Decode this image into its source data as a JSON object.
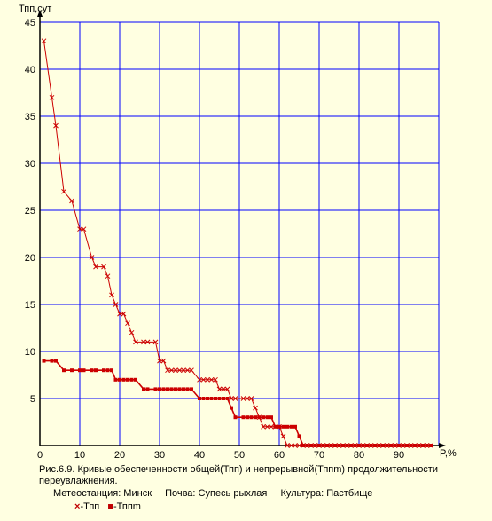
{
  "chart_data": {
    "type": "line",
    "ylabel": "Тпп,сут",
    "xlabel": "P,%",
    "xlim": [
      0,
      100
    ],
    "ylim": [
      0,
      45
    ],
    "xticks": [
      10,
      20,
      30,
      40,
      50,
      60,
      70,
      80,
      90
    ],
    "yticks": [
      5,
      10,
      15,
      20,
      25,
      30,
      35,
      40,
      45
    ],
    "grid": true,
    "series": [
      {
        "name": "Тпп",
        "marker": "x",
        "color": "#cc0000",
        "x": [
          1,
          3,
          4,
          6,
          8,
          10,
          11,
          13,
          14,
          16,
          17,
          18,
          19,
          20,
          21,
          22,
          23,
          24,
          26,
          27,
          29,
          30,
          31,
          32,
          33,
          34,
          35,
          36,
          37,
          38,
          40,
          41,
          42,
          43,
          44,
          45,
          46,
          47,
          48,
          49,
          51,
          52,
          53,
          54,
          55,
          56,
          57,
          58,
          59,
          60,
          61,
          62,
          63,
          64,
          65,
          66,
          67,
          68,
          69,
          70,
          71,
          72,
          73,
          74,
          75,
          76,
          77,
          78,
          79,
          80,
          81,
          82,
          83,
          84,
          85,
          86,
          87,
          88,
          89,
          90,
          91,
          92,
          93,
          94,
          95,
          96,
          97,
          98
        ],
        "values": [
          43,
          37,
          34,
          27,
          26,
          23,
          23,
          20,
          19,
          19,
          18,
          16,
          15,
          14,
          14,
          13,
          12,
          11,
          11,
          11,
          11,
          9,
          9,
          8,
          8,
          8,
          8,
          8,
          8,
          8,
          7,
          7,
          7,
          7,
          7,
          6,
          6,
          6,
          5,
          5,
          5,
          5,
          5,
          4,
          3,
          2,
          2,
          2,
          2,
          2,
          1,
          0,
          0,
          0,
          0,
          0,
          0,
          0,
          0,
          0,
          0,
          0,
          0,
          0,
          0,
          0,
          0,
          0,
          0,
          0,
          0,
          0,
          0,
          0,
          0,
          0,
          0,
          0,
          0,
          0,
          0,
          0,
          0,
          0,
          0,
          0,
          0,
          0
        ]
      },
      {
        "name": "Тппm",
        "marker": "square",
        "color": "#cc0000",
        "x": [
          1,
          3,
          4,
          6,
          8,
          10,
          11,
          13,
          14,
          16,
          17,
          18,
          19,
          20,
          21,
          22,
          23,
          24,
          26,
          27,
          29,
          30,
          31,
          32,
          33,
          34,
          35,
          36,
          37,
          38,
          40,
          41,
          42,
          43,
          44,
          45,
          46,
          47,
          48,
          49,
          51,
          52,
          53,
          54,
          55,
          56,
          57,
          58,
          59,
          60,
          61,
          62,
          63,
          64,
          65,
          66,
          67,
          68,
          69,
          70,
          71,
          72,
          73,
          74,
          75,
          76,
          77,
          78,
          79,
          80,
          81,
          82,
          83,
          84,
          85,
          86,
          87,
          88,
          89,
          90,
          91,
          92,
          93,
          94,
          95,
          96,
          97,
          98
        ],
        "values": [
          9,
          9,
          9,
          8,
          8,
          8,
          8,
          8,
          8,
          8,
          8,
          8,
          7,
          7,
          7,
          7,
          7,
          7,
          6,
          6,
          6,
          6,
          6,
          6,
          6,
          6,
          6,
          6,
          6,
          6,
          5,
          5,
          5,
          5,
          5,
          5,
          5,
          5,
          4,
          3,
          3,
          3,
          3,
          3,
          3,
          3,
          3,
          3,
          2,
          2,
          2,
          2,
          2,
          2,
          1,
          0,
          0,
          0,
          0,
          0,
          0,
          0,
          0,
          0,
          0,
          0,
          0,
          0,
          0,
          0,
          0,
          0,
          0,
          0,
          0,
          0,
          0,
          0,
          0,
          0,
          0,
          0,
          0,
          0,
          0,
          0,
          0,
          0
        ]
      }
    ]
  },
  "caption": {
    "line1": "Рис.6.9. Кривые обеспеченности общей(Тпп) и непрерывной(Тппm) продолжительности переувлажнения.",
    "station": "Метеостанция: Минск",
    "soil": "Почва: Супесь рыхлая",
    "crop": "Культура: Пастбище"
  },
  "legend": {
    "sym1": "×",
    "label1": "-Тпп",
    "sym2": "■",
    "label2": "-Тппm"
  }
}
